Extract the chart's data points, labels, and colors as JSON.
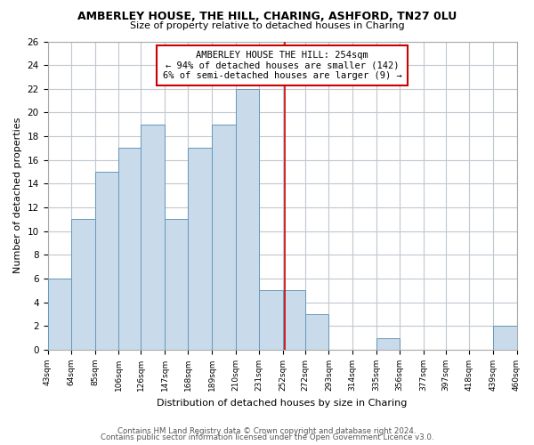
{
  "title": "AMBERLEY HOUSE, THE HILL, CHARING, ASHFORD, TN27 0LU",
  "subtitle": "Size of property relative to detached houses in Charing",
  "xlabel": "Distribution of detached houses by size in Charing",
  "ylabel": "Number of detached properties",
  "bar_edges": [
    43,
    64,
    85,
    106,
    126,
    147,
    168,
    189,
    210,
    231,
    252,
    272,
    293,
    314,
    335,
    356,
    377,
    397,
    418,
    439,
    460
  ],
  "bar_heights": [
    6,
    11,
    15,
    17,
    19,
    11,
    17,
    19,
    22,
    5,
    5,
    3,
    0,
    0,
    1,
    0,
    0,
    0,
    0,
    2
  ],
  "bar_color": "#c9daea",
  "bar_edge_color": "#6699bb",
  "property_line_x": 254,
  "property_line_color": "#cc0000",
  "annotation_line1": "AMBERLEY HOUSE THE HILL: 254sqm",
  "annotation_line2": "← 94% of detached houses are smaller (142)",
  "annotation_line3": "6% of semi-detached houses are larger (9) →",
  "annotation_box_color": "#ffffff",
  "annotation_box_edge": "#cc0000",
  "tick_labels": [
    "43sqm",
    "64sqm",
    "85sqm",
    "106sqm",
    "126sqm",
    "147sqm",
    "168sqm",
    "189sqm",
    "210sqm",
    "231sqm",
    "252sqm",
    "272sqm",
    "293sqm",
    "314sqm",
    "335sqm",
    "356sqm",
    "377sqm",
    "397sqm",
    "418sqm",
    "439sqm",
    "460sqm"
  ],
  "ylim": [
    0,
    26
  ],
  "yticks": [
    0,
    2,
    4,
    6,
    8,
    10,
    12,
    14,
    16,
    18,
    20,
    22,
    24,
    26
  ],
  "footer_line1": "Contains HM Land Registry data © Crown copyright and database right 2024.",
  "footer_line2": "Contains public sector information licensed under the Open Government Licence v3.0.",
  "background_color": "#ffffff",
  "grid_color": "#c0c8d0"
}
